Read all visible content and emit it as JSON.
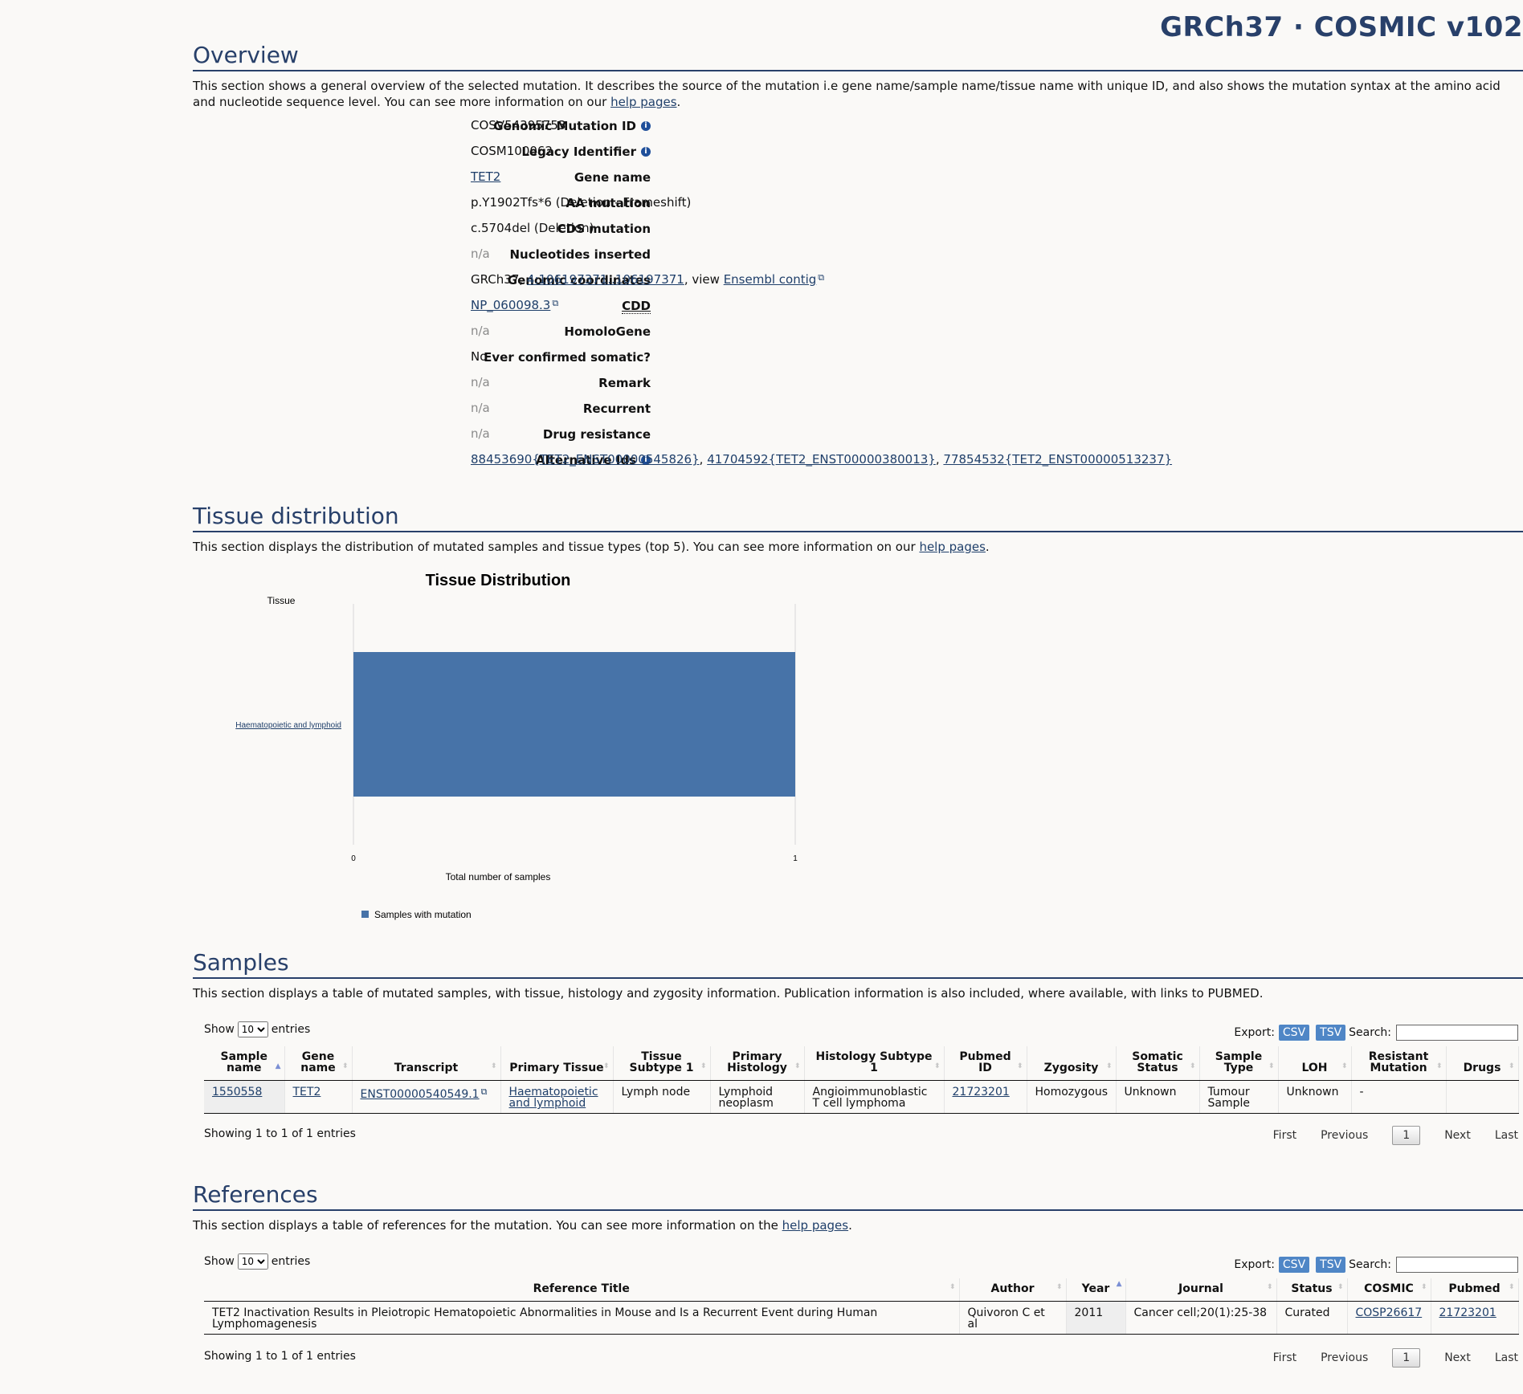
{
  "header": {
    "brand": "GRCh37 · COSMIC v102"
  },
  "overview": {
    "title": "Overview",
    "intro_pre": "This section shows a general overview of the selected mutation. It describes the source of the mutation i.e gene name/sample name/tissue name with unique ID, and also shows the mutation syntax at the amino acid and nucleotide sequence level. You can see more information on our ",
    "intro_link": "help pages",
    "intro_post": ".",
    "fields": {
      "genomic_mutation_id": {
        "label": "Genomic Mutation ID",
        "value": "COSV54395753"
      },
      "legacy_identifier": {
        "label": "Legacy Identifier",
        "value": "COSM100062"
      },
      "gene_name": {
        "label": "Gene name",
        "value": "TET2"
      },
      "aa_mutation": {
        "label": "AA mutation",
        "value": "p.Y1902Tfs*6 (Deletion - Frameshift)"
      },
      "cds_mutation": {
        "label": "CDS mutation",
        "value": "c.5704del (Deletion)"
      },
      "nucleotides_inserted": {
        "label": "Nucleotides inserted",
        "value": "n/a"
      },
      "genomic_coordinates": {
        "label": "Genomic coordinates",
        "prefix": "GRCh37, ",
        "coord_link": "4:106197371..106197371",
        "mid": ", view ",
        "ensembl_link": "Ensembl contig"
      },
      "cdd": {
        "label": "CDD",
        "value": "NP_060098.3"
      },
      "homologene": {
        "label": "HomoloGene",
        "value": "n/a"
      },
      "ever_confirmed_somatic": {
        "label": "Ever confirmed somatic?",
        "value": "No"
      },
      "remark": {
        "label": "Remark",
        "value": "n/a"
      },
      "recurrent": {
        "label": "Recurrent",
        "value": "n/a"
      },
      "drug_resistance": {
        "label": "Drug resistance",
        "value": "n/a"
      },
      "alternative_ids": {
        "label": "Alternative Ids",
        "ids": [
          "88453690{TET2_ENST00000545826}",
          "41704592{TET2_ENST00000380013}",
          "77854532{TET2_ENST00000513237}"
        ],
        "sep": ", "
      }
    }
  },
  "tissue": {
    "title": "Tissue distribution",
    "intro_pre": "This section displays the distribution of mutated samples and tissue types (top 5). You can see more information on our ",
    "intro_link": "help pages",
    "intro_post": "."
  },
  "chart_data": {
    "type": "bar",
    "orientation": "horizontal",
    "title": "Tissue Distribution",
    "ylabel": "Tissue",
    "xlabel": "Total number of samples",
    "categories": [
      "Haematopoietic and lymphoid"
    ],
    "series": [
      {
        "name": "Samples with mutation",
        "values": [
          1
        ],
        "color": "#4773a8"
      }
    ],
    "xlim": [
      0,
      1
    ],
    "x_ticks": [
      "0",
      "1"
    ],
    "legend_position": "bottom-left"
  },
  "samples": {
    "title": "Samples",
    "intro": "This section displays a table of mutated samples, with tissue, histology and zygosity information. Publication information is also included, where available, with links to PUBMED.",
    "show_label": "Show",
    "entries_label": "entries",
    "page_size": "10",
    "export_label": "Export:",
    "csv": "CSV",
    "tsv": "TSV",
    "search_label": "Search:",
    "columns": [
      "Sample name",
      "Gene name",
      "Transcript",
      "Primary Tissue",
      "Tissue Subtype 1",
      "Primary Histology",
      "Histology Subtype 1",
      "Pubmed ID",
      "Zygosity",
      "Somatic Status",
      "Sample Type",
      "LOH",
      "Resistant Mutation",
      "Drugs"
    ],
    "rows": [
      [
        "1550558",
        "TET2",
        "ENST00000540549.1",
        "Haematopoietic and lymphoid",
        "Lymph node",
        "Lymphoid neoplasm",
        "Angioimmunoblastic T cell lymphoma",
        "21723201",
        "Homozygous",
        "Unknown",
        "Tumour Sample",
        "Unknown",
        "-",
        ""
      ]
    ],
    "info": "Showing 1 to 1 of 1 entries",
    "pager": {
      "first": "First",
      "previous": "Previous",
      "current": "1",
      "next": "Next",
      "last": "Last"
    }
  },
  "references": {
    "title": "References",
    "intro_pre": "This section displays a table of references for the mutation. You can see more information on the ",
    "intro_link": "help pages",
    "intro_post": ".",
    "show_label": "Show",
    "entries_label": "entries",
    "page_size": "10",
    "export_label": "Export:",
    "csv": "CSV",
    "tsv": "TSV",
    "search_label": "Search:",
    "columns": [
      "Reference Title",
      "Author",
      "Year",
      "Journal",
      "Status",
      "COSMIC",
      "Pubmed"
    ],
    "rows": [
      [
        "TET2 Inactivation Results in Pleiotropic Hematopoietic Abnormalities in Mouse and Is a Recurrent Event during Human Lymphomagenesis",
        "Quivoron C et al",
        "2011",
        "Cancer cell;20(1):25-38",
        "Curated",
        "COSP26617",
        "21723201"
      ]
    ],
    "info": "Showing 1 to 1 of 1 entries",
    "pager": {
      "first": "First",
      "previous": "Previous",
      "current": "1",
      "next": "Next",
      "last": "Last"
    }
  }
}
